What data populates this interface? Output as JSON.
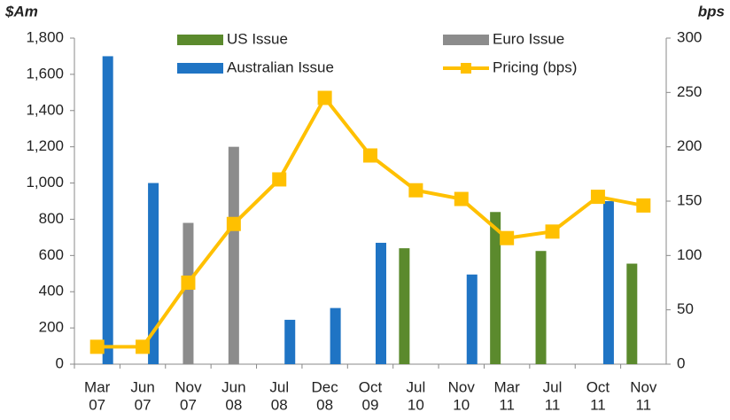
{
  "chart_data": {
    "type": "bar-line",
    "ylabel": "$Am",
    "y2label": "bps",
    "categories": [
      [
        "Mar",
        "07"
      ],
      [
        "Jun",
        "07"
      ],
      [
        "Nov",
        "07"
      ],
      [
        "Jun",
        "08"
      ],
      [
        "Jul",
        "08"
      ],
      [
        "Dec",
        "08"
      ],
      [
        "Oct",
        "09"
      ],
      [
        "Jul",
        "10"
      ],
      [
        "Nov",
        "10"
      ],
      [
        "Mar",
        "11"
      ],
      [
        "Jul",
        "11"
      ],
      [
        "Oct",
        "11"
      ],
      [
        "Nov",
        "11"
      ]
    ],
    "series": [
      {
        "name": "US Issue",
        "color": "#5b8a2d",
        "type": "bar",
        "values": [
          null,
          null,
          null,
          null,
          null,
          null,
          null,
          640,
          null,
          840,
          625,
          null,
          555
        ]
      },
      {
        "name": "Euro Issue",
        "color": "#8c8c8c",
        "type": "bar",
        "values": [
          null,
          null,
          780,
          1200,
          null,
          null,
          null,
          null,
          null,
          null,
          null,
          null,
          null
        ]
      },
      {
        "name": "Australian Issue",
        "color": "#1f74c4",
        "type": "bar",
        "values": [
          1700,
          1000,
          null,
          null,
          245,
          310,
          670,
          null,
          495,
          null,
          null,
          900,
          null
        ]
      },
      {
        "name": "Pricing (bps)",
        "color": "#ffc000",
        "type": "line",
        "axis": "y2",
        "values": [
          16,
          16,
          75,
          129,
          170,
          245,
          192,
          160,
          152,
          116,
          122,
          154,
          146
        ]
      }
    ],
    "ylim": [
      0,
      1800
    ],
    "yticks": [
      0,
      200,
      400,
      600,
      800,
      {
        "value": 1000,
        "label": "1,000"
      },
      {
        "value": 1200,
        "label": "1,200"
      },
      {
        "value": 1400,
        "label": "1,400"
      },
      {
        "value": 1600,
        "label": "1,600"
      },
      {
        "value": 1800,
        "label": "1,800"
      }
    ],
    "y2lim": [
      0,
      300
    ],
    "y2ticks": [
      0,
      50,
      100,
      150,
      200,
      250,
      300
    ]
  }
}
